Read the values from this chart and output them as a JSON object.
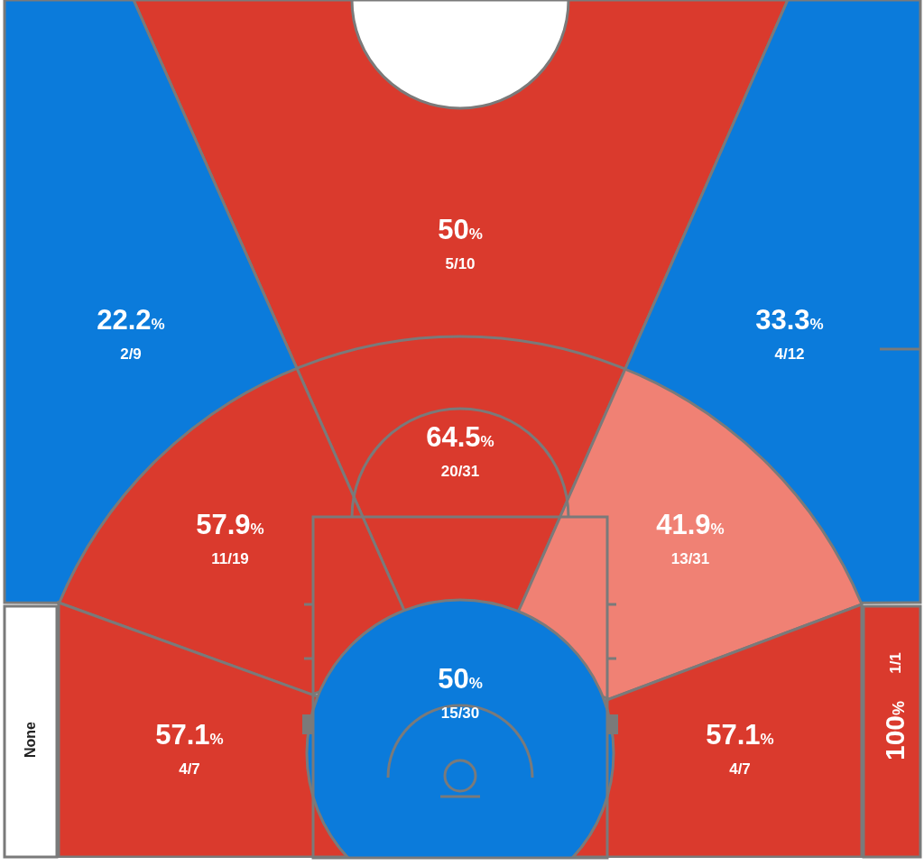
{
  "chart_data": {
    "type": "other",
    "categories": [
      "5/10",
      "2/9",
      "4/12",
      "20/31",
      "11/19",
      "13/31",
      "4/7",
      "4/7",
      "15/30",
      "1/1",
      "None"
    ],
    "values": [
      50,
      22.2,
      33.3,
      64.5,
      57.9,
      41.9,
      57.1,
      57.1,
      50,
      100,
      null
    ],
    "value_labels": [
      "50%",
      "22.2%",
      "33.3%",
      "64.5%",
      "57.9%",
      "41.9%",
      "57.1%",
      "57.1%",
      "50%",
      "100%",
      null
    ],
    "colors": [
      "#da3a2d",
      "#0b7bdb",
      "#0b7bdb",
      "#da3a2d",
      "#da3a2d",
      "#f08174",
      "#da3a2d",
      "#da3a2d",
      "#0b7bdb",
      "#da3a2d",
      "#ffffff"
    ]
  }
}
